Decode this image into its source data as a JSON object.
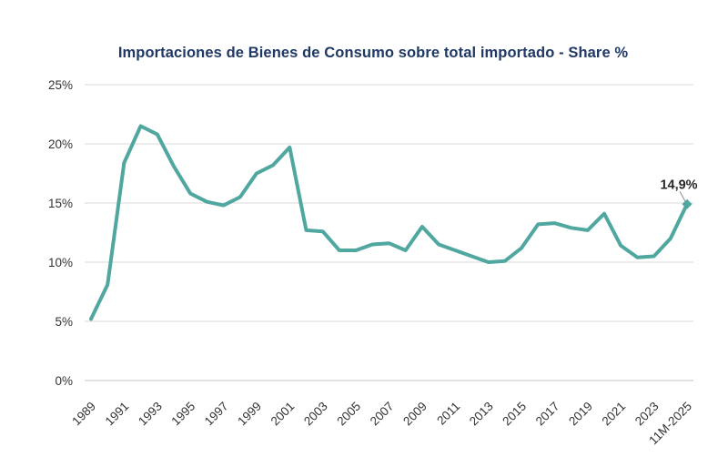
{
  "header": {
    "title": "Importaciones de Bienes de Consumo sobre total importado  - Share %",
    "title_color": "#1F3864"
  },
  "chart_data": {
    "type": "line",
    "title": "Importaciones de Bienes de Consumo sobre total importado - Share %",
    "x": [
      "1989",
      "1990",
      "1991",
      "1992",
      "1993",
      "1994",
      "1995",
      "1996",
      "1997",
      "1998",
      "1999",
      "2000",
      "2001",
      "2002",
      "2003",
      "2004",
      "2005",
      "2006",
      "2007",
      "2008",
      "2009",
      "2010",
      "2011",
      "2012",
      "2013",
      "2014",
      "2015",
      "2016",
      "2017",
      "2018",
      "2019",
      "2020",
      "2021",
      "2022",
      "2023",
      "2024",
      "11M-2025"
    ],
    "values": [
      5.2,
      8.1,
      18.4,
      21.5,
      20.8,
      18.1,
      15.8,
      15.1,
      14.8,
      15.5,
      17.5,
      18.2,
      19.7,
      12.7,
      12.6,
      11.0,
      11.0,
      11.5,
      11.6,
      11.0,
      13.0,
      11.5,
      11.0,
      10.5,
      10.0,
      10.1,
      11.2,
      13.2,
      13.3,
      12.9,
      12.7,
      14.1,
      11.4,
      10.4,
      10.5,
      12.0,
      14.9
    ],
    "x_tick_labels": [
      "1989",
      "1991",
      "1993",
      "1995",
      "1997",
      "1999",
      "2001",
      "2003",
      "2005",
      "2007",
      "2009",
      "2011",
      "2013",
      "2015",
      "2017",
      "2019",
      "2021",
      "2023",
      "11M-2025"
    ],
    "y_ticks": [
      "0%",
      "5%",
      "10%",
      "15%",
      "20%",
      "25%"
    ],
    "ylim": [
      0,
      25
    ],
    "xlabel": "",
    "ylabel": "",
    "grid": "horizontal-only",
    "legend": "none",
    "last_point_label": "14,9%",
    "line_color": "#4FA7A0",
    "grid_color": "#D9D9D9",
    "axis_line_color": "#C6C6C6",
    "axis_text_color": "#333333",
    "label_color": "#262626",
    "leader_color": "#8C8C8C",
    "background": "#FFFFFF"
  }
}
